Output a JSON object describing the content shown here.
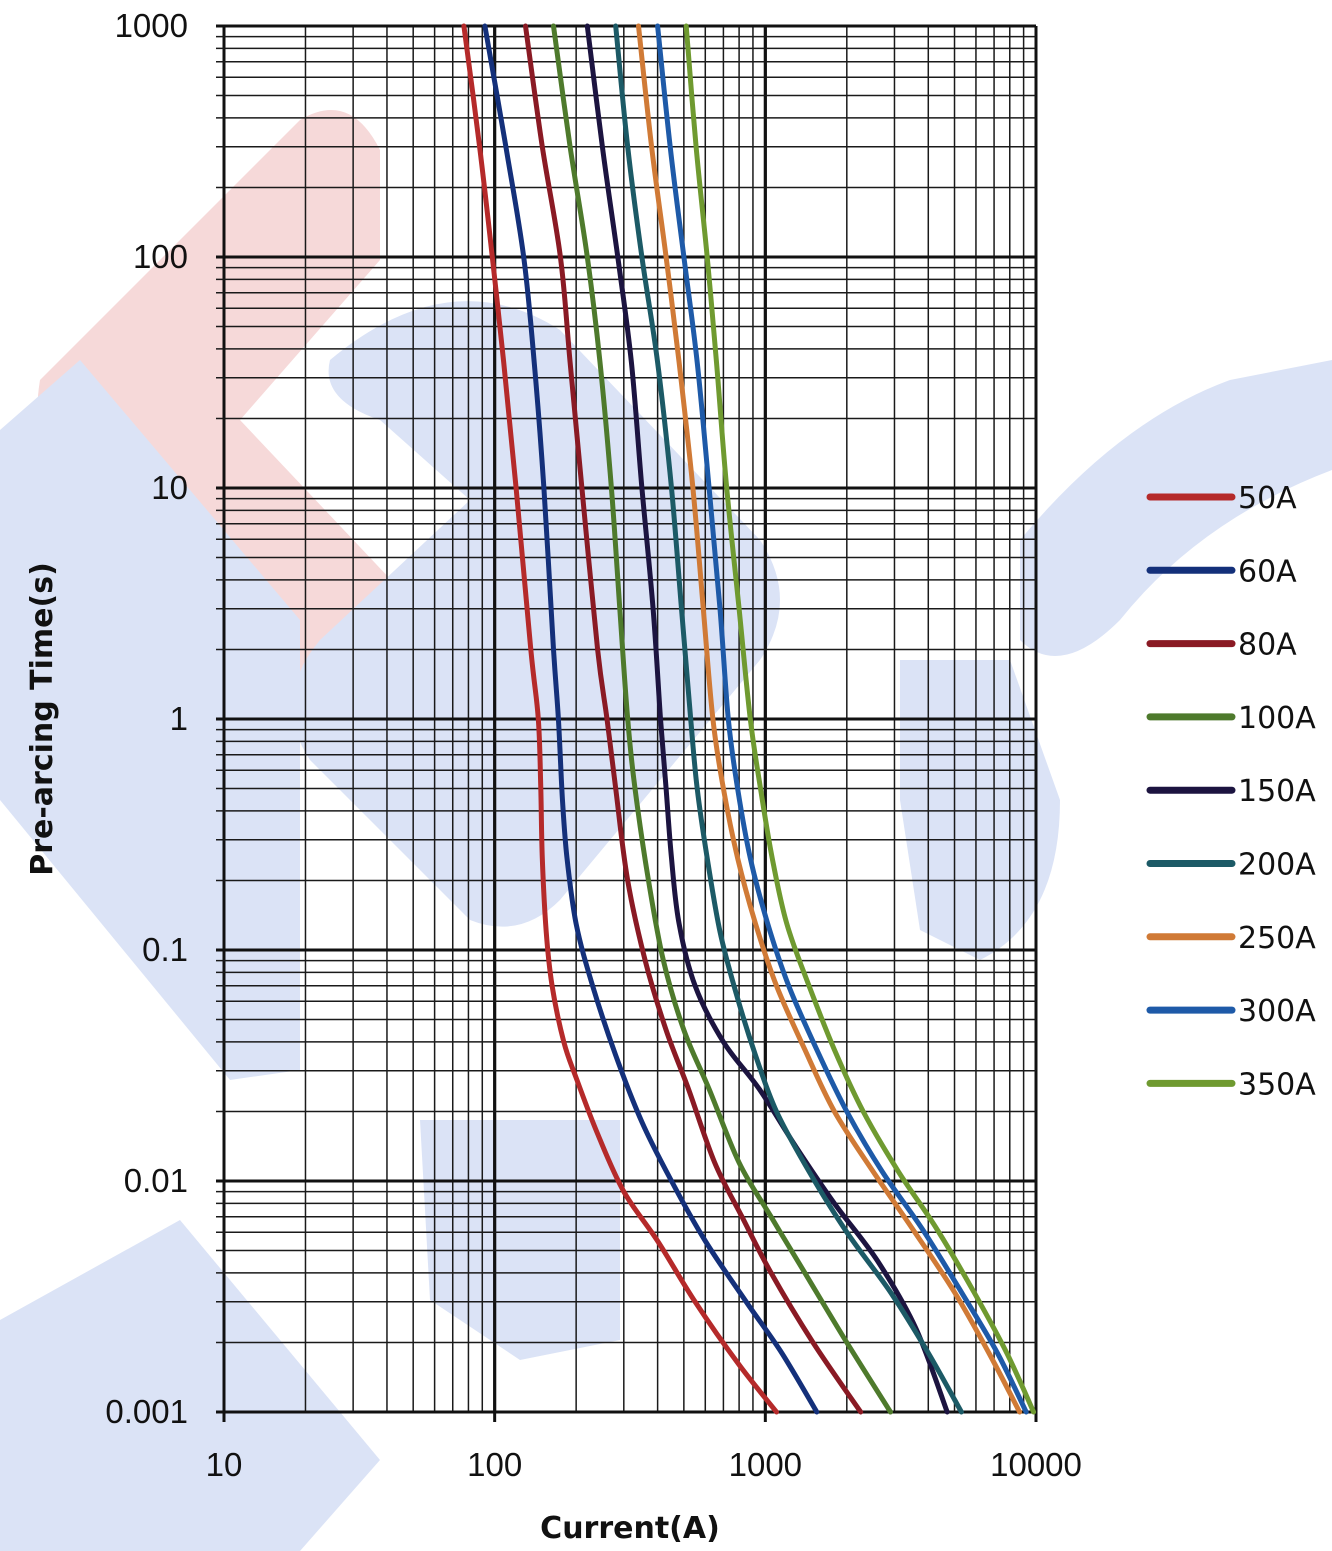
{
  "chart_data": {
    "type": "line",
    "title": "",
    "xlabel": "Current(A)",
    "ylabel": "Pre-arcing  Time(s)",
    "xscale": "log",
    "yscale": "log",
    "xlim": [
      10,
      10000
    ],
    "ylim": [
      0.001,
      1000
    ],
    "xticks": [
      "10",
      "100",
      "1000",
      "10000"
    ],
    "yticks": [
      "1000",
      "100",
      "10",
      "1",
      "0.1",
      "0.01",
      "0.001"
    ],
    "grid": true,
    "legend": "right",
    "series": [
      {
        "name": "50A",
        "color": "#b52a2a",
        "x": [
          77,
          88,
          98,
          108,
          120,
          136,
          145,
          148,
          150,
          155,
          163,
          180,
          200,
          240,
          300,
          400,
          550,
          800,
          1100
        ],
        "y": [
          1000,
          300,
          100,
          35,
          10,
          2,
          1,
          0.5,
          0.25,
          0.12,
          0.07,
          0.04,
          0.028,
          0.016,
          0.009,
          0.0055,
          0.003,
          0.0016,
          0.001
        ]
      },
      {
        "name": "60A",
        "color": "#14307a",
        "x": [
          92,
          110,
          128,
          140,
          152,
          165,
          172,
          178,
          185,
          200,
          230,
          280,
          350,
          450,
          600,
          850,
          1150,
          1550
        ],
        "y": [
          1000,
          300,
          100,
          35,
          10,
          2,
          1,
          0.45,
          0.25,
          0.13,
          0.07,
          0.035,
          0.018,
          0.01,
          0.0055,
          0.003,
          0.0018,
          0.001
        ]
      },
      {
        "name": "80A",
        "color": "#8a1a24",
        "x": [
          130,
          150,
          175,
          190,
          210,
          240,
          260,
          280,
          310,
          360,
          430,
          520,
          650,
          820,
          1050,
          1500,
          2250
        ],
        "y": [
          1000,
          300,
          100,
          35,
          10,
          2,
          1,
          0.5,
          0.2,
          0.09,
          0.045,
          0.025,
          0.012,
          0.007,
          0.004,
          0.002,
          0.001
        ]
      },
      {
        "name": "100A",
        "color": "#4e7a2c",
        "x": [
          165,
          190,
          220,
          245,
          270,
          290,
          310,
          330,
          370,
          420,
          500,
          620,
          800,
          1050,
          1400,
          2000,
          2900
        ],
        "y": [
          1000,
          300,
          100,
          35,
          10,
          3,
          1,
          0.5,
          0.2,
          0.09,
          0.045,
          0.025,
          0.012,
          0.007,
          0.004,
          0.002,
          0.001
        ]
      },
      {
        "name": "150A",
        "color": "#1c1440",
        "x": [
          220,
          250,
          285,
          320,
          350,
          385,
          410,
          430,
          450,
          480,
          550,
          700,
          950,
          1300,
          1800,
          2600,
          3600,
          4700
        ],
        "y": [
          1000,
          300,
          100,
          35,
          10,
          3,
          1,
          0.5,
          0.25,
          0.13,
          0.07,
          0.04,
          0.025,
          0.014,
          0.008,
          0.0045,
          0.0023,
          0.001
        ]
      },
      {
        "name": "200A",
        "color": "#1c5a66",
        "x": [
          280,
          310,
          350,
          400,
          450,
          490,
          530,
          560,
          610,
          680,
          780,
          920,
          1100,
          1450,
          2000,
          2900,
          4000,
          5300
        ],
        "y": [
          1000,
          300,
          100,
          35,
          10,
          3,
          1,
          0.5,
          0.25,
          0.12,
          0.065,
          0.035,
          0.02,
          0.011,
          0.006,
          0.0033,
          0.0018,
          0.001
        ]
      },
      {
        "name": "250A",
        "color": "#d07a36",
        "x": [
          340,
          380,
          430,
          480,
          540,
          590,
          640,
          700,
          790,
          920,
          1100,
          1400,
          1800,
          2500,
          3500,
          5000,
          6700,
          8700
        ],
        "y": [
          1000,
          300,
          100,
          35,
          10,
          3,
          1,
          0.5,
          0.25,
          0.13,
          0.07,
          0.037,
          0.02,
          0.011,
          0.0062,
          0.0033,
          0.0018,
          0.001
        ]
      },
      {
        "name": "300A",
        "color": "#1e5aa8",
        "x": [
          400,
          445,
          500,
          560,
          620,
          680,
          730,
          790,
          880,
          1020,
          1220,
          1550,
          2000,
          2700,
          3800,
          5300,
          7200,
          9200
        ],
        "y": [
          1000,
          300,
          100,
          35,
          10,
          3,
          1,
          0.5,
          0.25,
          0.13,
          0.07,
          0.037,
          0.02,
          0.011,
          0.0062,
          0.0033,
          0.0018,
          0.001
        ]
      },
      {
        "name": "350A",
        "color": "#6f9a30",
        "x": [
          510,
          555,
          610,
          660,
          720,
          800,
          880,
          960,
          1060,
          1200,
          1450,
          1800,
          2300,
          3100,
          4300,
          5900,
          7800,
          9800
        ],
        "y": [
          1000,
          300,
          100,
          35,
          10,
          3,
          1,
          0.5,
          0.25,
          0.13,
          0.07,
          0.037,
          0.02,
          0.011,
          0.0062,
          0.0033,
          0.0018,
          0.001
        ]
      }
    ]
  }
}
